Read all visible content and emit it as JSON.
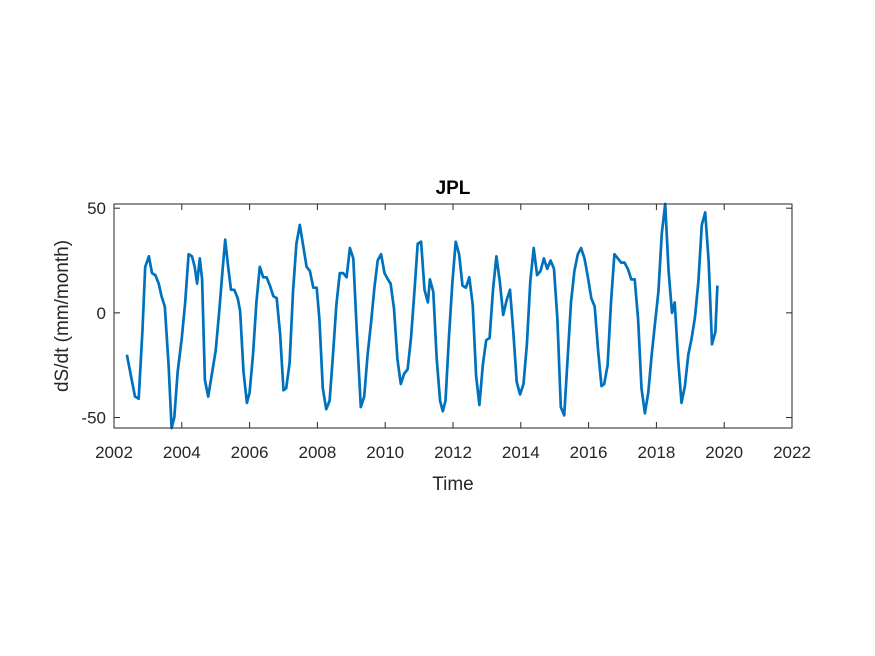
{
  "chart_data": {
    "type": "line",
    "title": "JPL",
    "xlabel": "Time",
    "ylabel": "dS/dt (mm/month)",
    "xlim": [
      2002,
      2022
    ],
    "ylim": [
      -55,
      52
    ],
    "x_ticks": [
      2002,
      2004,
      2006,
      2008,
      2010,
      2012,
      2014,
      2016,
      2018,
      2020,
      2022
    ],
    "y_ticks": [
      -50,
      0,
      50
    ],
    "grid": false,
    "series": [
      {
        "color": "#0072BD",
        "points": [
          [
            2002.38,
            -20
          ],
          [
            2002.5,
            -30
          ],
          [
            2002.62,
            -40
          ],
          [
            2002.73,
            -41
          ],
          [
            2002.84,
            -8
          ],
          [
            2002.92,
            22
          ],
          [
            2003.03,
            27
          ],
          [
            2003.12,
            19
          ],
          [
            2003.22,
            18
          ],
          [
            2003.32,
            14
          ],
          [
            2003.4,
            8
          ],
          [
            2003.5,
            3
          ],
          [
            2003.61,
            -25
          ],
          [
            2003.7,
            -55
          ],
          [
            2003.78,
            -50
          ],
          [
            2003.88,
            -28
          ],
          [
            2004.0,
            -12
          ],
          [
            2004.1,
            5
          ],
          [
            2004.2,
            28
          ],
          [
            2004.3,
            27
          ],
          [
            2004.38,
            22
          ],
          [
            2004.45,
            14
          ],
          [
            2004.53,
            26
          ],
          [
            2004.6,
            16
          ],
          [
            2004.68,
            -32
          ],
          [
            2004.78,
            -40
          ],
          [
            2004.9,
            -28
          ],
          [
            2005.0,
            -18
          ],
          [
            2005.1,
            0
          ],
          [
            2005.2,
            20
          ],
          [
            2005.28,
            35
          ],
          [
            2005.36,
            23
          ],
          [
            2005.45,
            11
          ],
          [
            2005.55,
            11
          ],
          [
            2005.65,
            7
          ],
          [
            2005.72,
            1
          ],
          [
            2005.82,
            -28
          ],
          [
            2005.92,
            -43
          ],
          [
            2006.0,
            -38
          ],
          [
            2006.1,
            -20
          ],
          [
            2006.2,
            5
          ],
          [
            2006.3,
            22
          ],
          [
            2006.4,
            17
          ],
          [
            2006.5,
            17
          ],
          [
            2006.6,
            13
          ],
          [
            2006.7,
            8
          ],
          [
            2006.8,
            7
          ],
          [
            2006.9,
            -10
          ],
          [
            2007.0,
            -37
          ],
          [
            2007.08,
            -36
          ],
          [
            2007.18,
            -24
          ],
          [
            2007.28,
            10
          ],
          [
            2007.38,
            33
          ],
          [
            2007.48,
            42
          ],
          [
            2007.58,
            32
          ],
          [
            2007.68,
            22
          ],
          [
            2007.78,
            20
          ],
          [
            2007.88,
            12
          ],
          [
            2007.98,
            12
          ],
          [
            2008.06,
            -3
          ],
          [
            2008.16,
            -36
          ],
          [
            2008.26,
            -46
          ],
          [
            2008.36,
            -42
          ],
          [
            2008.46,
            -20
          ],
          [
            2008.56,
            4
          ],
          [
            2008.66,
            19
          ],
          [
            2008.76,
            19
          ],
          [
            2008.86,
            17
          ],
          [
            2008.96,
            31
          ],
          [
            2009.06,
            26
          ],
          [
            2009.16,
            -8
          ],
          [
            2009.28,
            -45
          ],
          [
            2009.38,
            -40
          ],
          [
            2009.48,
            -20
          ],
          [
            2009.58,
            -5
          ],
          [
            2009.68,
            12
          ],
          [
            2009.78,
            25
          ],
          [
            2009.88,
            28
          ],
          [
            2009.98,
            19
          ],
          [
            2010.08,
            16
          ],
          [
            2010.16,
            14
          ],
          [
            2010.26,
            2
          ],
          [
            2010.36,
            -22
          ],
          [
            2010.46,
            -34
          ],
          [
            2010.56,
            -29
          ],
          [
            2010.66,
            -27
          ],
          [
            2010.76,
            -12
          ],
          [
            2010.86,
            10
          ],
          [
            2010.96,
            33
          ],
          [
            2011.06,
            34
          ],
          [
            2011.16,
            11
          ],
          [
            2011.26,
            5
          ],
          [
            2011.32,
            16
          ],
          [
            2011.42,
            10
          ],
          [
            2011.52,
            -22
          ],
          [
            2011.62,
            -42
          ],
          [
            2011.7,
            -47
          ],
          [
            2011.78,
            -42
          ],
          [
            2011.88,
            -12
          ],
          [
            2011.98,
            14
          ],
          [
            2012.08,
            34
          ],
          [
            2012.18,
            28
          ],
          [
            2012.28,
            13
          ],
          [
            2012.38,
            12
          ],
          [
            2012.48,
            17
          ],
          [
            2012.58,
            4
          ],
          [
            2012.68,
            -30
          ],
          [
            2012.78,
            -44
          ],
          [
            2012.88,
            -25
          ],
          [
            2012.98,
            -13
          ],
          [
            2013.08,
            -12
          ],
          [
            2013.18,
            11
          ],
          [
            2013.28,
            27
          ],
          [
            2013.38,
            15
          ],
          [
            2013.48,
            -1
          ],
          [
            2013.58,
            6
          ],
          [
            2013.68,
            11
          ],
          [
            2013.78,
            -9
          ],
          [
            2013.88,
            -33
          ],
          [
            2013.98,
            -39
          ],
          [
            2014.08,
            -34
          ],
          [
            2014.18,
            -15
          ],
          [
            2014.28,
            15
          ],
          [
            2014.38,
            31
          ],
          [
            2014.48,
            18
          ],
          [
            2014.58,
            20
          ],
          [
            2014.68,
            26
          ],
          [
            2014.78,
            21
          ],
          [
            2014.88,
            25
          ],
          [
            2014.98,
            21
          ],
          [
            2015.08,
            -3
          ],
          [
            2015.18,
            -45
          ],
          [
            2015.28,
            -49
          ],
          [
            2015.38,
            -22
          ],
          [
            2015.48,
            5
          ],
          [
            2015.58,
            20
          ],
          [
            2015.68,
            28
          ],
          [
            2015.78,
            31
          ],
          [
            2015.88,
            26
          ],
          [
            2015.98,
            17
          ],
          [
            2016.08,
            7
          ],
          [
            2016.18,
            3
          ],
          [
            2016.28,
            -18
          ],
          [
            2016.38,
            -35
          ],
          [
            2016.46,
            -34
          ],
          [
            2016.56,
            -25
          ],
          [
            2016.66,
            5
          ],
          [
            2016.76,
            28
          ],
          [
            2016.86,
            26
          ],
          [
            2016.96,
            24
          ],
          [
            2017.06,
            24
          ],
          [
            2017.16,
            21
          ],
          [
            2017.26,
            16
          ],
          [
            2017.36,
            16
          ],
          [
            2017.46,
            -3
          ],
          [
            2017.56,
            -36
          ],
          [
            2017.66,
            -48
          ],
          [
            2017.76,
            -38
          ],
          [
            2017.86,
            -20
          ],
          [
            2017.96,
            -5
          ],
          [
            2018.06,
            10
          ],
          [
            2018.16,
            38
          ],
          [
            2018.26,
            52
          ],
          [
            2018.36,
            20
          ],
          [
            2018.46,
            0
          ],
          [
            2018.54,
            5
          ],
          [
            2018.64,
            -22
          ],
          [
            2018.74,
            -43
          ],
          [
            2018.84,
            -35
          ],
          [
            2018.94,
            -20
          ],
          [
            2019.04,
            -12
          ],
          [
            2019.14,
            -2
          ],
          [
            2019.24,
            15
          ],
          [
            2019.34,
            42
          ],
          [
            2019.44,
            48
          ],
          [
            2019.54,
            25
          ],
          [
            2019.64,
            -15
          ],
          [
            2019.74,
            -9
          ],
          [
            2019.8,
            13
          ]
        ]
      }
    ]
  }
}
